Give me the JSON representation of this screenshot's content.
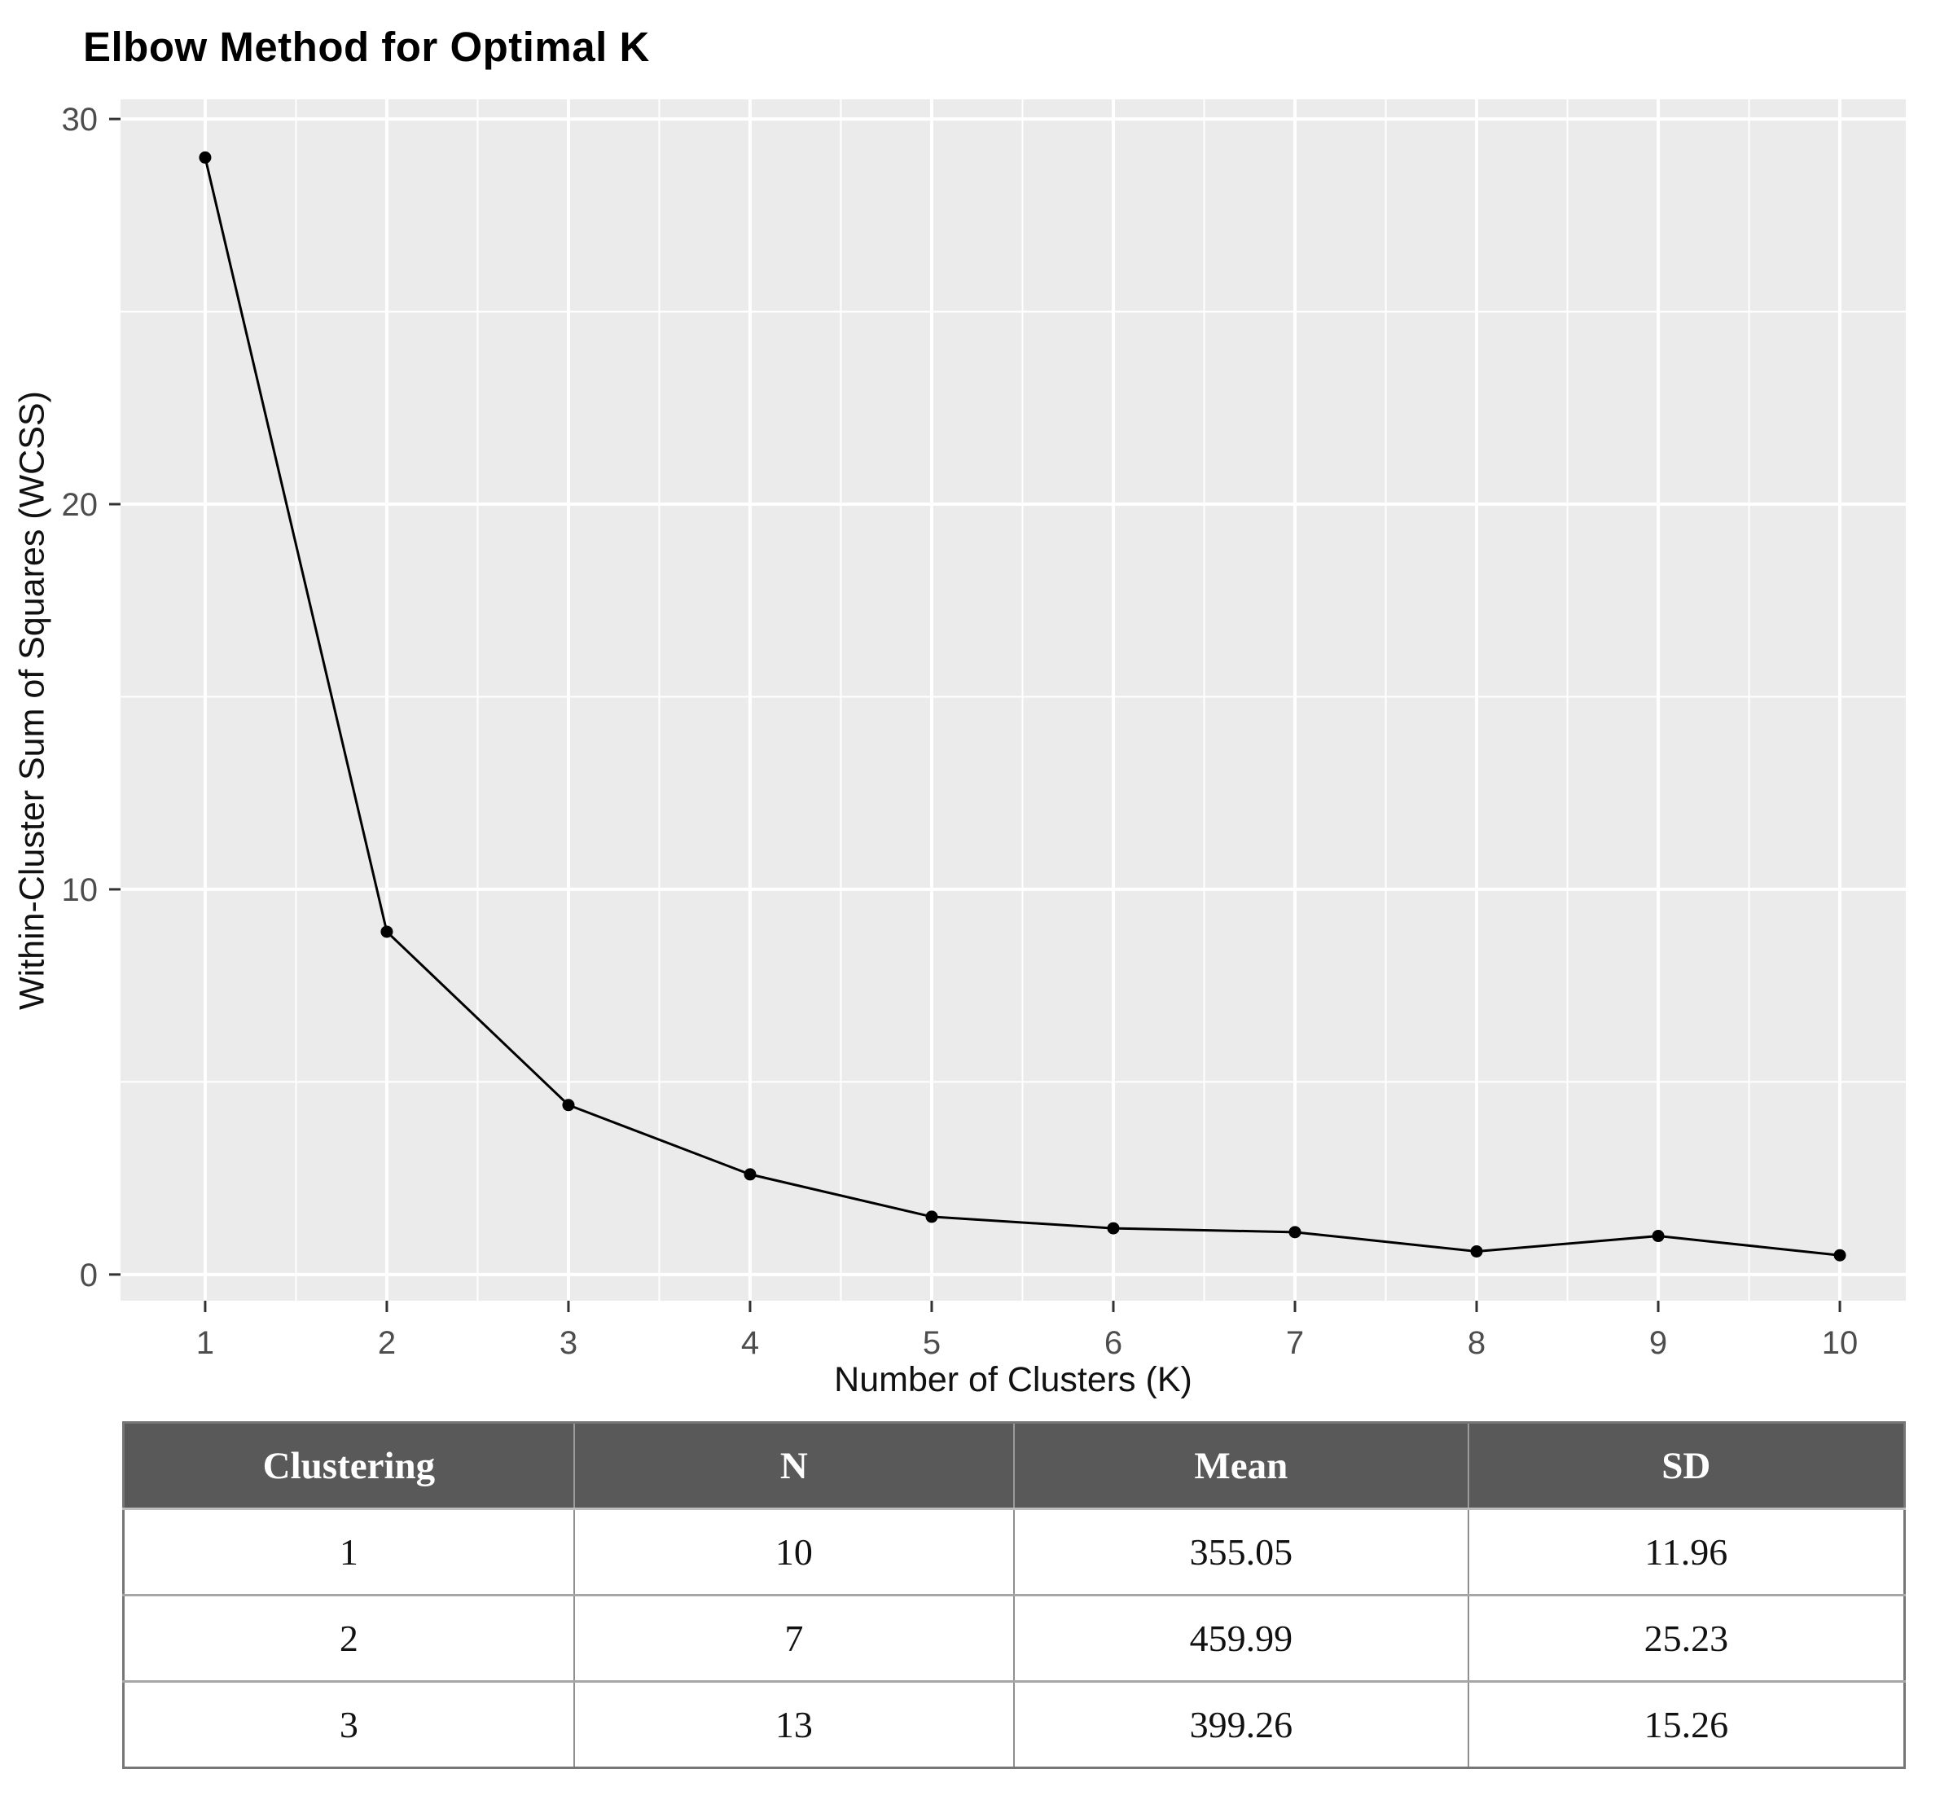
{
  "chart_data": {
    "type": "line",
    "title": "Elbow Method for Optimal K",
    "xlabel": "Number of Clusters (K)",
    "ylabel": "Within-Cluster Sum of Squares (WCSS)",
    "x": [
      1,
      2,
      3,
      4,
      5,
      6,
      7,
      8,
      9,
      10
    ],
    "values": [
      29.0,
      8.9,
      4.4,
      2.6,
      1.5,
      1.2,
      1.1,
      0.6,
      1.0,
      0.5
    ],
    "series_name": "WCSS",
    "x_ticks": [
      1,
      2,
      3,
      4,
      5,
      6,
      7,
      8,
      9,
      10
    ],
    "y_ticks": [
      0,
      10,
      20,
      30
    ],
    "x_minor": [
      1.5,
      2.5,
      3.5,
      4.5,
      5.5,
      6.5,
      7.5,
      8.5,
      9.5
    ],
    "y_minor": [
      5,
      15,
      25
    ],
    "xlim": [
      0.534,
      10.363
    ],
    "ylim": [
      -0.68,
      30.51
    ],
    "grid": "major-and-minor",
    "legend": "none",
    "style": {
      "panel_bg": "#EBEBEB",
      "grid_major_color": "#FFFFFF",
      "grid_minor_color": "#FFFFFF",
      "line_color": "#000000",
      "point_color": "#000000",
      "tick_mark_color": "#333333",
      "tick_label_color": "#4D4D4D",
      "title_color": "#000000"
    }
  },
  "table": {
    "headers": [
      "Clustering",
      "N",
      "Mean",
      "SD"
    ],
    "rows": [
      [
        "1",
        "10",
        "355.05",
        "11.96"
      ],
      [
        "2",
        "7",
        "459.99",
        "25.23"
      ],
      [
        "3",
        "13",
        "399.26",
        "15.26"
      ]
    ],
    "header_bg": "#595959",
    "header_text_color": "#FFFFFF"
  }
}
